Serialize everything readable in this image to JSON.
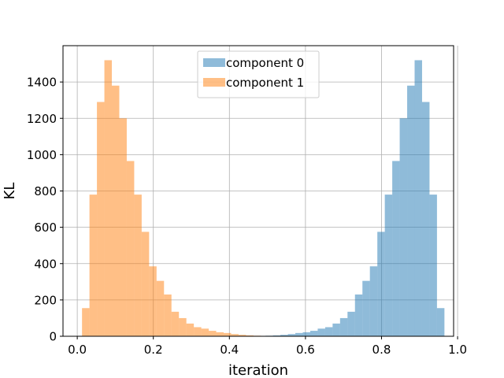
{
  "chart_data": {
    "type": "bar",
    "xlabel": "iteration",
    "ylabel": "KL",
    "xlim": [
      -0.0375,
      0.9895
    ],
    "ylim": [
      0,
      1600
    ],
    "xticks": [
      0.0,
      0.2,
      0.4,
      0.6,
      0.8,
      1.0
    ],
    "xtick_labels": [
      "0.0",
      "0.2",
      "0.4",
      "0.6",
      "0.8",
      "1.0"
    ],
    "yticks": [
      0,
      200,
      400,
      600,
      800,
      1000,
      1200,
      1400
    ],
    "ytick_labels": [
      "0",
      "200",
      "400",
      "600",
      "800",
      "1000",
      "1200",
      "1400"
    ],
    "grid": true,
    "legend_position": "top-center",
    "series": [
      {
        "name": "component 0",
        "color": "#1f77b4",
        "alpha": 0.5,
        "bin_start": 0.495,
        "bin_width": 0.0196,
        "values": [
          3,
          5,
          8,
          12,
          18,
          22,
          30,
          42,
          50,
          70,
          100,
          135,
          230,
          305,
          385,
          575,
          780,
          965,
          1200,
          1380,
          1520,
          1290,
          780,
          155
        ]
      },
      {
        "name": "component 1",
        "color": "#ff7f0e",
        "alpha": 0.5,
        "bin_start": 0.0125,
        "bin_width": 0.0196,
        "values": [
          155,
          780,
          1290,
          1520,
          1380,
          1200,
          965,
          780,
          575,
          385,
          305,
          230,
          135,
          100,
          70,
          50,
          42,
          30,
          22,
          18,
          12,
          8,
          5,
          3
        ]
      }
    ]
  }
}
